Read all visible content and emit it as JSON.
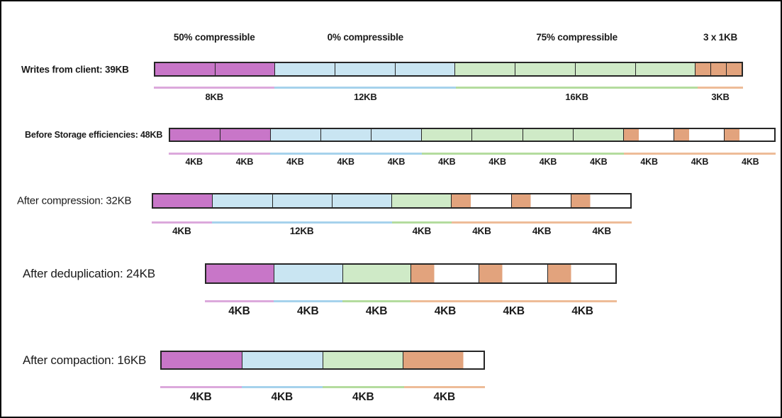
{
  "colors": {
    "fill": {
      "magenta": "#C876C8",
      "blue": "#C9E5F2",
      "green": "#CFEAC7",
      "orange": "#E2A37D",
      "white": "#FFFFFF"
    },
    "underline": {
      "magenta": "#DCA9DC",
      "blue": "#A6D2EC",
      "green": "#B4DC9E",
      "orange": "#EEBC98"
    },
    "bar_border": "#262626",
    "text": "#1A1A1A"
  },
  "compressibility_headers": [
    {
      "label": "50% compressible",
      "span_kb": 8
    },
    {
      "label": "0% compressible",
      "span_kb": 12
    },
    {
      "label": "75% compressible",
      "span_kb": 16
    },
    {
      "label": "3 x 1KB",
      "span_kb": 3
    }
  ],
  "rows": [
    {
      "id": "writes-from-client",
      "label": "Writes from client: 39KB",
      "total_kb": 39,
      "segments": [
        {
          "color": "magenta",
          "kb": 4
        },
        {
          "color": "magenta",
          "kb": 4
        },
        {
          "color": "blue",
          "kb": 4
        },
        {
          "color": "blue",
          "kb": 4
        },
        {
          "color": "blue",
          "kb": 4
        },
        {
          "color": "green",
          "kb": 4
        },
        {
          "color": "green",
          "kb": 4
        },
        {
          "color": "green",
          "kb": 4
        },
        {
          "color": "green",
          "kb": 4
        },
        {
          "color": "orange",
          "kb": 1
        },
        {
          "color": "orange",
          "kb": 1
        },
        {
          "color": "orange",
          "kb": 1
        }
      ],
      "underline_groups": [
        {
          "color": "magenta",
          "kb": 8
        },
        {
          "color": "blue",
          "kb": 12
        },
        {
          "color": "green",
          "kb": 16
        },
        {
          "color": "orange",
          "kb": 3
        }
      ],
      "size_labels": [
        {
          "label": "8KB",
          "kb": 8
        },
        {
          "label": "12KB",
          "kb": 12
        },
        {
          "label": "16KB",
          "kb": 16
        },
        {
          "label": "3KB",
          "kb": 3
        }
      ]
    },
    {
      "id": "before-storage-efficiencies",
      "label": "Before Storage efficiencies: 48KB",
      "total_kb": 48,
      "segments": [
        {
          "color": "magenta",
          "kb": 4
        },
        {
          "color": "magenta",
          "kb": 4
        },
        {
          "color": "blue",
          "kb": 4
        },
        {
          "color": "blue",
          "kb": 4
        },
        {
          "color": "blue",
          "kb": 4
        },
        {
          "color": "green",
          "kb": 4
        },
        {
          "color": "green",
          "kb": 4
        },
        {
          "color": "green",
          "kb": 4
        },
        {
          "color": "green",
          "kb": 4
        },
        {
          "kb": 4,
          "parts": [
            {
              "color": "orange",
              "frac": 0.3
            },
            {
              "color": "white",
              "frac": 0.7
            }
          ]
        },
        {
          "kb": 4,
          "parts": [
            {
              "color": "orange",
              "frac": 0.3
            },
            {
              "color": "white",
              "frac": 0.7
            }
          ]
        },
        {
          "kb": 4,
          "parts": [
            {
              "color": "orange",
              "frac": 0.3
            },
            {
              "color": "white",
              "frac": 0.7
            }
          ]
        }
      ],
      "underline_groups": [
        {
          "color": "magenta",
          "kb": 8
        },
        {
          "color": "blue",
          "kb": 12
        },
        {
          "color": "green",
          "kb": 16
        },
        {
          "color": "orange",
          "kb": 12
        }
      ],
      "size_labels": [
        {
          "label": "4KB",
          "kb": 4
        },
        {
          "label": "4KB",
          "kb": 4
        },
        {
          "label": "4KB",
          "kb": 4
        },
        {
          "label": "4KB",
          "kb": 4
        },
        {
          "label": "4KB",
          "kb": 4
        },
        {
          "label": "4KB",
          "kb": 4
        },
        {
          "label": "4KB",
          "kb": 4
        },
        {
          "label": "4KB",
          "kb": 4
        },
        {
          "label": "4KB",
          "kb": 4
        },
        {
          "label": "4KB",
          "kb": 4
        },
        {
          "label": "4KB",
          "kb": 4
        },
        {
          "label": "4KB",
          "kb": 4
        }
      ]
    },
    {
      "id": "after-compression",
      "label": "After compression: 32KB",
      "total_kb": 32,
      "segments": [
        {
          "color": "magenta",
          "kb": 4
        },
        {
          "color": "blue",
          "kb": 4
        },
        {
          "color": "blue",
          "kb": 4
        },
        {
          "color": "blue",
          "kb": 4
        },
        {
          "color": "green",
          "kb": 4
        },
        {
          "kb": 4,
          "parts": [
            {
              "color": "orange",
              "frac": 0.32
            },
            {
              "color": "white",
              "frac": 0.68
            }
          ]
        },
        {
          "kb": 4,
          "parts": [
            {
              "color": "orange",
              "frac": 0.32
            },
            {
              "color": "white",
              "frac": 0.68
            }
          ]
        },
        {
          "kb": 4,
          "parts": [
            {
              "color": "orange",
              "frac": 0.32
            },
            {
              "color": "white",
              "frac": 0.68
            }
          ]
        }
      ],
      "underline_groups": [
        {
          "color": "magenta",
          "kb": 4
        },
        {
          "color": "blue",
          "kb": 12
        },
        {
          "color": "green",
          "kb": 4
        },
        {
          "color": "orange",
          "kb": 12
        }
      ],
      "size_labels": [
        {
          "label": "4KB",
          "kb": 4
        },
        {
          "label": "12KB",
          "kb": 12
        },
        {
          "label": "4KB",
          "kb": 4
        },
        {
          "label": "4KB",
          "kb": 4
        },
        {
          "label": "4KB",
          "kb": 4
        },
        {
          "label": "4KB",
          "kb": 4
        }
      ]
    },
    {
      "id": "after-deduplication",
      "label": "After deduplication: 24KB",
      "total_kb": 24,
      "segments": [
        {
          "color": "magenta",
          "kb": 4
        },
        {
          "color": "blue",
          "kb": 4
        },
        {
          "color": "green",
          "kb": 4
        },
        {
          "kb": 4,
          "parts": [
            {
              "color": "orange",
              "frac": 0.34
            },
            {
              "color": "white",
              "frac": 0.66
            }
          ]
        },
        {
          "kb": 4,
          "parts": [
            {
              "color": "orange",
              "frac": 0.34
            },
            {
              "color": "white",
              "frac": 0.66
            }
          ]
        },
        {
          "kb": 4,
          "parts": [
            {
              "color": "orange",
              "frac": 0.34
            },
            {
              "color": "white",
              "frac": 0.66
            }
          ]
        }
      ],
      "underline_groups": [
        {
          "color": "magenta",
          "kb": 4
        },
        {
          "color": "blue",
          "kb": 4
        },
        {
          "color": "green",
          "kb": 4
        },
        {
          "color": "orange",
          "kb": 12
        }
      ],
      "size_labels": [
        {
          "label": "4KB",
          "kb": 4
        },
        {
          "label": "4KB",
          "kb": 4
        },
        {
          "label": "4KB",
          "kb": 4
        },
        {
          "label": "4KB",
          "kb": 4
        },
        {
          "label": "4KB",
          "kb": 4
        },
        {
          "label": "4KB",
          "kb": 4
        }
      ]
    },
    {
      "id": "after-compaction",
      "label": "After compaction: 16KB",
      "total_kb": 16,
      "segments": [
        {
          "color": "magenta",
          "kb": 4
        },
        {
          "color": "blue",
          "kb": 4
        },
        {
          "color": "green",
          "kb": 4
        },
        {
          "kb": 4,
          "parts": [
            {
              "color": "orange",
              "frac": 0.75
            },
            {
              "color": "white",
              "frac": 0.25
            }
          ]
        }
      ],
      "underline_groups": [
        {
          "color": "magenta",
          "kb": 4
        },
        {
          "color": "blue",
          "kb": 4
        },
        {
          "color": "green",
          "kb": 4
        },
        {
          "color": "orange",
          "kb": 4
        }
      ],
      "size_labels": [
        {
          "label": "4KB",
          "kb": 4
        },
        {
          "label": "4KB",
          "kb": 4
        },
        {
          "label": "4KB",
          "kb": 4
        },
        {
          "label": "4KB",
          "kb": 4
        }
      ]
    }
  ]
}
